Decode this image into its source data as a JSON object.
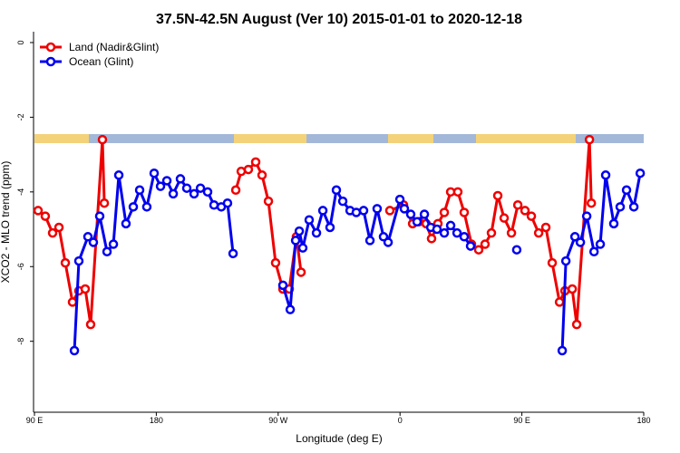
{
  "chart_data": {
    "type": "line",
    "title": "37.5N-42.5N August (Ver 10)   2015-01-01 to 2020-12-18",
    "x_label": "Longitude (deg E)",
    "y_label": "XCO2 - MLO trend (ppm)",
    "xlim": [
      90,
      540
    ],
    "xticks": [
      {
        "value": 90,
        "label": "90 E"
      },
      180,
      {
        "value": 270,
        "label": "90 W"
      },
      {
        "value": 360,
        "label": "0"
      },
      {
        "value": 450,
        "label": "90 E"
      },
      {
        "value": 540,
        "label": "180"
      }
    ],
    "ylim": [
      -9.9,
      0.3
    ],
    "yticks": [
      0,
      -2,
      -4,
      -6,
      -8
    ],
    "legend": "top-left",
    "series": [
      {
        "name": "Land (Nadir&Glint)",
        "color": "#ee0000",
        "x": [
          92.7,
          98.0,
          103.4,
          108.1,
          112.8,
          118.1,
          122.8,
          127.5,
          131.5,
          140.2,
          141.6,
          null,
          238.7,
          242.7,
          248.0,
          253.4,
          258.1,
          262.8,
          268.1,
          273.5,
          278.2,
          283.5,
          286.9,
          null,
          352.5,
          362.6,
          369.3,
          374.0,
          379.3,
          383.3,
          388.0,
          392.7,
          397.4,
          402.7,
          407.4,
          412.8,
          418.1,
          422.8,
          427.5,
          432.2,
          436.9,
          442.3,
          447.0,
          452.3,
          457.0,
          462.4,
          467.7,
          472.4,
          477.8,
          481.8,
          487.2,
          490.5,
          499.9,
          501.3
        ],
        "values": [
          -4.5,
          -4.65,
          -5.1,
          -4.95,
          -5.9,
          -6.95,
          -6.65,
          -6.6,
          -7.55,
          -2.6,
          -4.3,
          null,
          -3.95,
          -3.45,
          -3.4,
          -3.2,
          -3.55,
          -4.25,
          -5.9,
          -6.6,
          -6.6,
          -5.2,
          -6.15,
          null,
          -4.5,
          -4.35,
          -4.85,
          -4.8,
          -4.85,
          -5.25,
          -4.85,
          -4.55,
          -4.0,
          -4.0,
          -4.55,
          -5.4,
          -5.55,
          -5.4,
          -5.1,
          -4.1,
          -4.7,
          -5.1,
          -4.35,
          -4.5,
          -4.65,
          -5.1,
          -4.95,
          -5.9,
          -6.95,
          -6.65,
          -6.6,
          -7.55,
          -2.6,
          -4.3
        ]
      },
      {
        "name": "Ocean (Glint)",
        "color": "#0000ee",
        "x": [
          119.5,
          122.8,
          129.5,
          133.5,
          138.2,
          143.6,
          148.3,
          152.3,
          157.6,
          163.0,
          167.7,
          173.0,
          178.4,
          183.1,
          187.8,
          192.5,
          197.8,
          202.5,
          207.9,
          212.6,
          217.9,
          222.6,
          228.0,
          232.6,
          236.7,
          null,
          273.5,
          278.9,
          282.9,
          285.6,
          288.2,
          292.9,
          298.3,
          303.0,
          308.3,
          313.0,
          317.7,
          323.1,
          327.7,
          333.1,
          337.8,
          343.1,
          347.8,
          351.2,
          359.9,
          363.2,
          367.9,
          372.6,
          378.0,
          382.7,
          387.3,
          392.7,
          397.4,
          402.1,
          407.4,
          412.1,
          null,
          446.2,
          null,
          479.8,
          482.5,
          489.2,
          493.2,
          497.9,
          503.3,
          507.9,
          511.9,
          517.9,
          522.6,
          527.3,
          532.7,
          537.4
        ],
        "values": [
          -8.25,
          -5.85,
          -5.2,
          -5.35,
          -4.65,
          -5.6,
          -5.4,
          -3.55,
          -4.85,
          -4.4,
          -3.95,
          -4.4,
          -3.5,
          -3.85,
          -3.7,
          -4.05,
          -3.65,
          -3.9,
          -4.05,
          -3.9,
          -4.0,
          -4.35,
          -4.4,
          -4.3,
          -5.65,
          null,
          -6.5,
          -7.15,
          -5.3,
          -5.05,
          -5.5,
          -4.75,
          -5.1,
          -4.5,
          -4.95,
          -3.95,
          -4.25,
          -4.5,
          -4.55,
          -4.5,
          -5.3,
          -4.45,
          -5.2,
          -5.35,
          -4.2,
          -4.45,
          -4.6,
          -4.8,
          -4.6,
          -4.95,
          -5.0,
          -5.1,
          -4.9,
          -5.1,
          -5.2,
          -5.45,
          null,
          -5.55,
          null,
          -8.25,
          -5.85,
          -5.2,
          -5.35,
          -4.65,
          -5.6,
          -5.4,
          -3.55,
          -4.85,
          -4.4,
          -3.95,
          -4.4,
          -3.5
        ]
      }
    ]
  }
}
